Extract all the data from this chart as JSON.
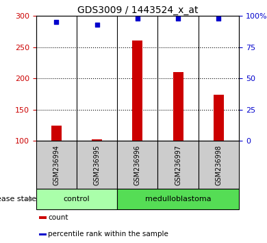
{
  "title": "GDS3009 / 1443524_x_at",
  "samples": [
    "GSM236994",
    "GSM236995",
    "GSM236996",
    "GSM236997",
    "GSM236998"
  ],
  "counts": [
    125,
    103,
    261,
    210,
    174
  ],
  "percentiles": [
    95,
    93,
    98,
    98,
    98
  ],
  "ylim_left": [
    100,
    300
  ],
  "ylim_right": [
    0,
    100
  ],
  "yticks_left": [
    100,
    150,
    200,
    250,
    300
  ],
  "yticks_right": [
    0,
    25,
    50,
    75,
    100
  ],
  "yticklabels_right": [
    "0",
    "25",
    "50",
    "75",
    "100%"
  ],
  "bar_color": "#cc0000",
  "scatter_color": "#0000cc",
  "bar_width": 0.25,
  "groups": [
    {
      "label": "control",
      "indices": [
        0,
        1
      ],
      "color": "#aaffaa"
    },
    {
      "label": "medulloblastoma",
      "indices": [
        2,
        3,
        4
      ],
      "color": "#55dd55"
    }
  ],
  "group_label": "disease state",
  "legend_items": [
    {
      "label": "count",
      "color": "#cc0000"
    },
    {
      "label": "percentile rank within the sample",
      "color": "#0000cc"
    }
  ],
  "background_color": "#ffffff",
  "tick_color_left": "#cc0000",
  "tick_color_right": "#0000cc",
  "sample_box_color": "#cccccc",
  "title_fontsize": 10,
  "tick_fontsize": 8,
  "label_fontsize": 8,
  "legend_fontsize": 7.5
}
